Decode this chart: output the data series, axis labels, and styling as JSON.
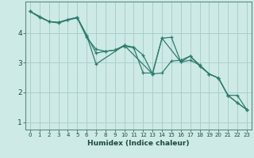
{
  "xlabel": "Humidex (Indice chaleur)",
  "bg_color": "#ceeae6",
  "grid_color": "#aacfcb",
  "line_color": "#2e7d6e",
  "xlim": [
    -0.5,
    23.5
  ],
  "ylim": [
    0.75,
    5.05
  ],
  "yticks": [
    1,
    2,
    3,
    4
  ],
  "xticks": [
    0,
    1,
    2,
    3,
    4,
    5,
    6,
    7,
    8,
    9,
    10,
    11,
    12,
    13,
    14,
    15,
    16,
    17,
    18,
    19,
    20,
    21,
    22,
    23
  ],
  "line1_x": [
    0,
    1,
    2,
    3,
    4,
    5,
    6,
    7,
    8,
    9,
    10,
    11,
    12,
    13,
    14,
    15,
    16,
    17,
    18,
    19,
    20,
    21,
    22,
    23
  ],
  "line1_y": [
    4.72,
    4.52,
    4.38,
    4.33,
    4.43,
    4.5,
    3.85,
    3.45,
    3.38,
    3.42,
    3.58,
    3.52,
    3.25,
    2.62,
    2.65,
    3.05,
    3.08,
    3.22,
    2.88,
    2.62,
    2.48,
    1.9,
    1.65,
    1.42
  ],
  "line2_x": [
    0,
    1,
    2,
    3,
    4,
    5,
    6,
    7,
    8,
    9,
    10,
    11,
    12,
    13,
    14,
    15,
    16,
    17,
    18,
    19,
    20,
    21,
    22,
    23
  ],
  "line2_y": [
    4.72,
    4.55,
    4.38,
    4.35,
    4.45,
    4.52,
    3.92,
    3.32,
    3.38,
    3.42,
    3.55,
    3.5,
    2.65,
    2.65,
    3.82,
    3.85,
    3.02,
    3.08,
    2.92,
    2.62,
    2.48,
    1.9,
    1.9,
    1.42
  ],
  "line3_x": [
    0,
    2,
    3,
    5,
    6,
    7,
    10,
    13,
    14,
    16,
    17,
    19,
    20,
    21,
    22,
    23
  ],
  "line3_y": [
    4.72,
    4.38,
    4.35,
    4.52,
    3.92,
    2.95,
    3.58,
    2.62,
    3.82,
    3.02,
    3.22,
    2.62,
    2.48,
    1.9,
    1.65,
    1.42
  ]
}
